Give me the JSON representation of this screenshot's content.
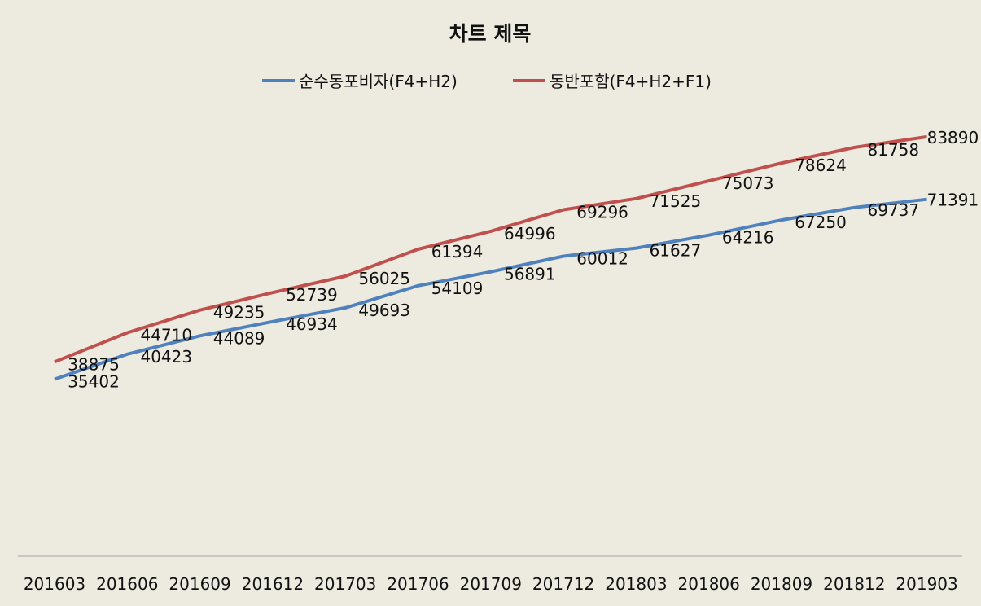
{
  "chart_data": {
    "type": "line",
    "title": "차트 제목",
    "xlabel": "",
    "ylabel": "",
    "ylim": [
      0,
      90000
    ],
    "grid": false,
    "legend": "top",
    "categories": [
      "201603",
      "201606",
      "201609",
      "201612",
      "201703",
      "201706",
      "201709",
      "201712",
      "201803",
      "201806",
      "201809",
      "201812",
      "201903"
    ],
    "series": [
      {
        "name": "순수동포비자(F4+H2)",
        "color": "#4f81bd",
        "values": [
          35402,
          40423,
          44089,
          46934,
          49693,
          54109,
          56891,
          60012,
          61627,
          64216,
          67250,
          69737,
          71391
        ]
      },
      {
        "name": "동반포함(F4+H2+F1)",
        "color": "#c0504d",
        "values": [
          38875,
          44710,
          49235,
          52739,
          56025,
          61394,
          64996,
          69296,
          71525,
          75073,
          78624,
          81758,
          83890
        ]
      }
    ]
  }
}
